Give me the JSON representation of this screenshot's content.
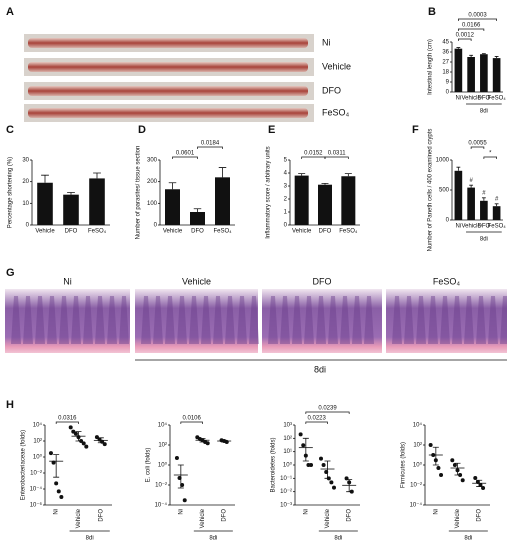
{
  "panel_labels": [
    "A",
    "B",
    "C",
    "D",
    "E",
    "F",
    "G",
    "H"
  ],
  "photos_a": {
    "labels": [
      "Ni",
      "Vehicle",
      "DFO",
      "FeSO₄"
    ]
  },
  "photos_g": {
    "labels": [
      "Ni",
      "Vehicle",
      "DFO",
      "FeSO₄"
    ],
    "group_label": "8di"
  },
  "chart_data": [
    {
      "type": "bar",
      "ylabel": "Intestinal length (cm)",
      "categories": [
        "Ni",
        "Vehicle",
        "DFO",
        "FeSO₄"
      ],
      "values": [
        39,
        31.5,
        34,
        30.5
      ],
      "errors": [
        1,
        1.5,
        0.5,
        1.5
      ],
      "color": "#111111",
      "ylim": [
        0,
        45
      ],
      "yticks": [
        0,
        9,
        18,
        27,
        36,
        45
      ],
      "annotations": [
        "0.0012",
        "0.0166",
        "0.0003"
      ],
      "group_label": "8di"
    },
    {
      "type": "bar",
      "ylabel": "Percentage shortening (%)",
      "categories": [
        "Vehicle",
        "DFO",
        "FeSO₄"
      ],
      "values": [
        19.5,
        14,
        21.5
      ],
      "errors": [
        3.5,
        1,
        2.5
      ],
      "color": "#111111",
      "ylim": [
        0,
        30
      ],
      "yticks": [
        0,
        10,
        20,
        30
      ]
    },
    {
      "type": "bar",
      "ylabel": "Number of parasites/ tissue section",
      "categories": [
        "Vehicle",
        "DFO",
        "FeSO₄"
      ],
      "values": [
        165,
        60,
        220
      ],
      "errors": [
        30,
        15,
        45
      ],
      "color": "#111111",
      "ylim": [
        0,
        300
      ],
      "yticks": [
        0,
        100,
        200,
        300
      ],
      "annotations": [
        "0.0601",
        "0.0184"
      ]
    },
    {
      "type": "bar",
      "ylabel": "Inflammatory score / arbitrary units",
      "categories": [
        "Vehicle",
        "DFO",
        "FeSO₄"
      ],
      "values": [
        3.8,
        3.1,
        3.75
      ],
      "errors": [
        0.15,
        0.1,
        0.2
      ],
      "color": "#111111",
      "ylim": [
        0,
        5
      ],
      "yticks": [
        0,
        1,
        2,
        3,
        4,
        5
      ],
      "annotations": [
        "0.0152",
        "0.0311"
      ]
    },
    {
      "type": "bar",
      "ylabel": "Number of Paneth cells / 400 examined crypts",
      "categories": [
        "Ni",
        "Vehicle",
        "DFO",
        "FeSO₄"
      ],
      "values": [
        820,
        540,
        320,
        230
      ],
      "errors": [
        60,
        40,
        50,
        40
      ],
      "color": "#111111",
      "ylim": [
        0,
        1000
      ],
      "yticks": [
        0,
        500,
        1000
      ],
      "markers": [
        null,
        "#",
        "#",
        "#"
      ],
      "annotations": [
        "0.0055",
        "*"
      ],
      "group_label": "8di"
    },
    {
      "type": "scatter",
      "ylabel": "Enterobacteriaceae (folds)",
      "log": true,
      "categories": [
        "Ni",
        "Vehicle",
        "DFO"
      ],
      "values": [
        [
          3,
          0.2,
          0.0005,
          5e-05,
          1e-05
        ],
        [
          5000,
          1500,
          800,
          300,
          100,
          50,
          20
        ],
        [
          300,
          150,
          80,
          40
        ]
      ],
      "means": [
        0.3,
        400,
        120
      ],
      "error_bars": [
        [
          0.003,
          2
        ],
        [
          100,
          1500
        ],
        [
          60,
          250
        ]
      ],
      "ylim": [
        1e-06,
        10000
      ],
      "yticks": [
        {
          "value": 1e-06,
          "label": "10⁻⁶"
        },
        {
          "value": 0.0001,
          "label": "10⁻⁴"
        },
        {
          "value": 0.01,
          "label": "10⁻²"
        },
        {
          "value": 1,
          "label": "10⁰"
        },
        {
          "value": 100,
          "label": "10²"
        },
        {
          "value": 10000,
          "label": "10⁴"
        }
      ],
      "annotations": [
        "0.0316"
      ],
      "group_label": "8di"
    },
    {
      "type": "scatter",
      "ylabel": "E. coli (folds)",
      "log": true,
      "categories": [
        "Ni",
        "Vehicle",
        "DFO"
      ],
      "values": [
        [
          5,
          0.05,
          0.01,
          0.0003
        ],
        [
          600,
          400,
          300,
          200,
          150
        ],
        [
          300,
          250,
          200
        ]
      ],
      "means": [
        0.1,
        300,
        250
      ],
      "error_bars": [
        [
          0.005,
          1
        ],
        [
          200,
          450
        ],
        [
          200,
          300
        ]
      ],
      "ylim": [
        0.0001,
        10000
      ],
      "yticks": [
        {
          "value": 0.0001,
          "label": "10⁻⁴"
        },
        {
          "value": 0.01,
          "label": "10⁻²"
        },
        {
          "value": 1,
          "label": "10⁰"
        },
        {
          "value": 100,
          "label": "10²"
        },
        {
          "value": 10000,
          "label": "10⁴"
        }
      ],
      "annotations": [
        "0.0106"
      ],
      "group_label": "8di"
    },
    {
      "type": "scatter",
      "ylabel": "Bacteroidetes (folds)",
      "log": true,
      "categories": [
        "Ni",
        "Vehicle",
        "DFO"
      ],
      "values": [
        [
          200,
          30,
          5,
          1,
          1
        ],
        [
          3,
          1,
          0.3,
          0.1,
          0.05,
          0.02
        ],
        [
          0.1,
          0.05,
          0.01
        ]
      ],
      "means": [
        20,
        0.5,
        0.03
      ],
      "error_bars": [
        [
          2,
          100
        ],
        [
          0.1,
          2
        ],
        [
          0.01,
          0.08
        ]
      ],
      "ylim": [
        0.001,
        1000
      ],
      "yticks": [
        {
          "value": 0.001,
          "label": "10⁻³"
        },
        {
          "value": 0.01,
          "label": "10⁻²"
        },
        {
          "value": 0.1,
          "label": "10⁻¹"
        },
        {
          "value": 1,
          "label": "10⁰"
        },
        {
          "value": 10,
          "label": "10¹"
        },
        {
          "value": 100,
          "label": "10²"
        },
        {
          "value": 1000,
          "label": "10³"
        }
      ],
      "annotations": [
        "0.0223",
        "0.0239"
      ],
      "group_label": "8di"
    },
    {
      "type": "scatter",
      "ylabel": "Firmicutes (folds)",
      "log": true,
      "categories": [
        "Ni",
        "Vehicle",
        "DFO"
      ],
      "values": [
        [
          100,
          10,
          3,
          0.5,
          0.1
        ],
        [
          3,
          1,
          0.3,
          0.1,
          0.03
        ],
        [
          0.05,
          0.02,
          0.01,
          0.005
        ]
      ],
      "means": [
        10,
        0.5,
        0.015
      ],
      "error_bars": [
        [
          1,
          60
        ],
        [
          0.1,
          1.5
        ],
        [
          0.007,
          0.03
        ]
      ],
      "ylim": [
        0.0001,
        10000
      ],
      "yticks": [
        {
          "value": 0.0001,
          "label": "10⁻⁴"
        },
        {
          "value": 0.01,
          "label": "10⁻²"
        },
        {
          "value": 1,
          "label": "10⁰"
        },
        {
          "value": 100,
          "label": "10²"
        },
        {
          "value": 10000,
          "label": "10⁴"
        }
      ],
      "group_label": "8di"
    }
  ]
}
